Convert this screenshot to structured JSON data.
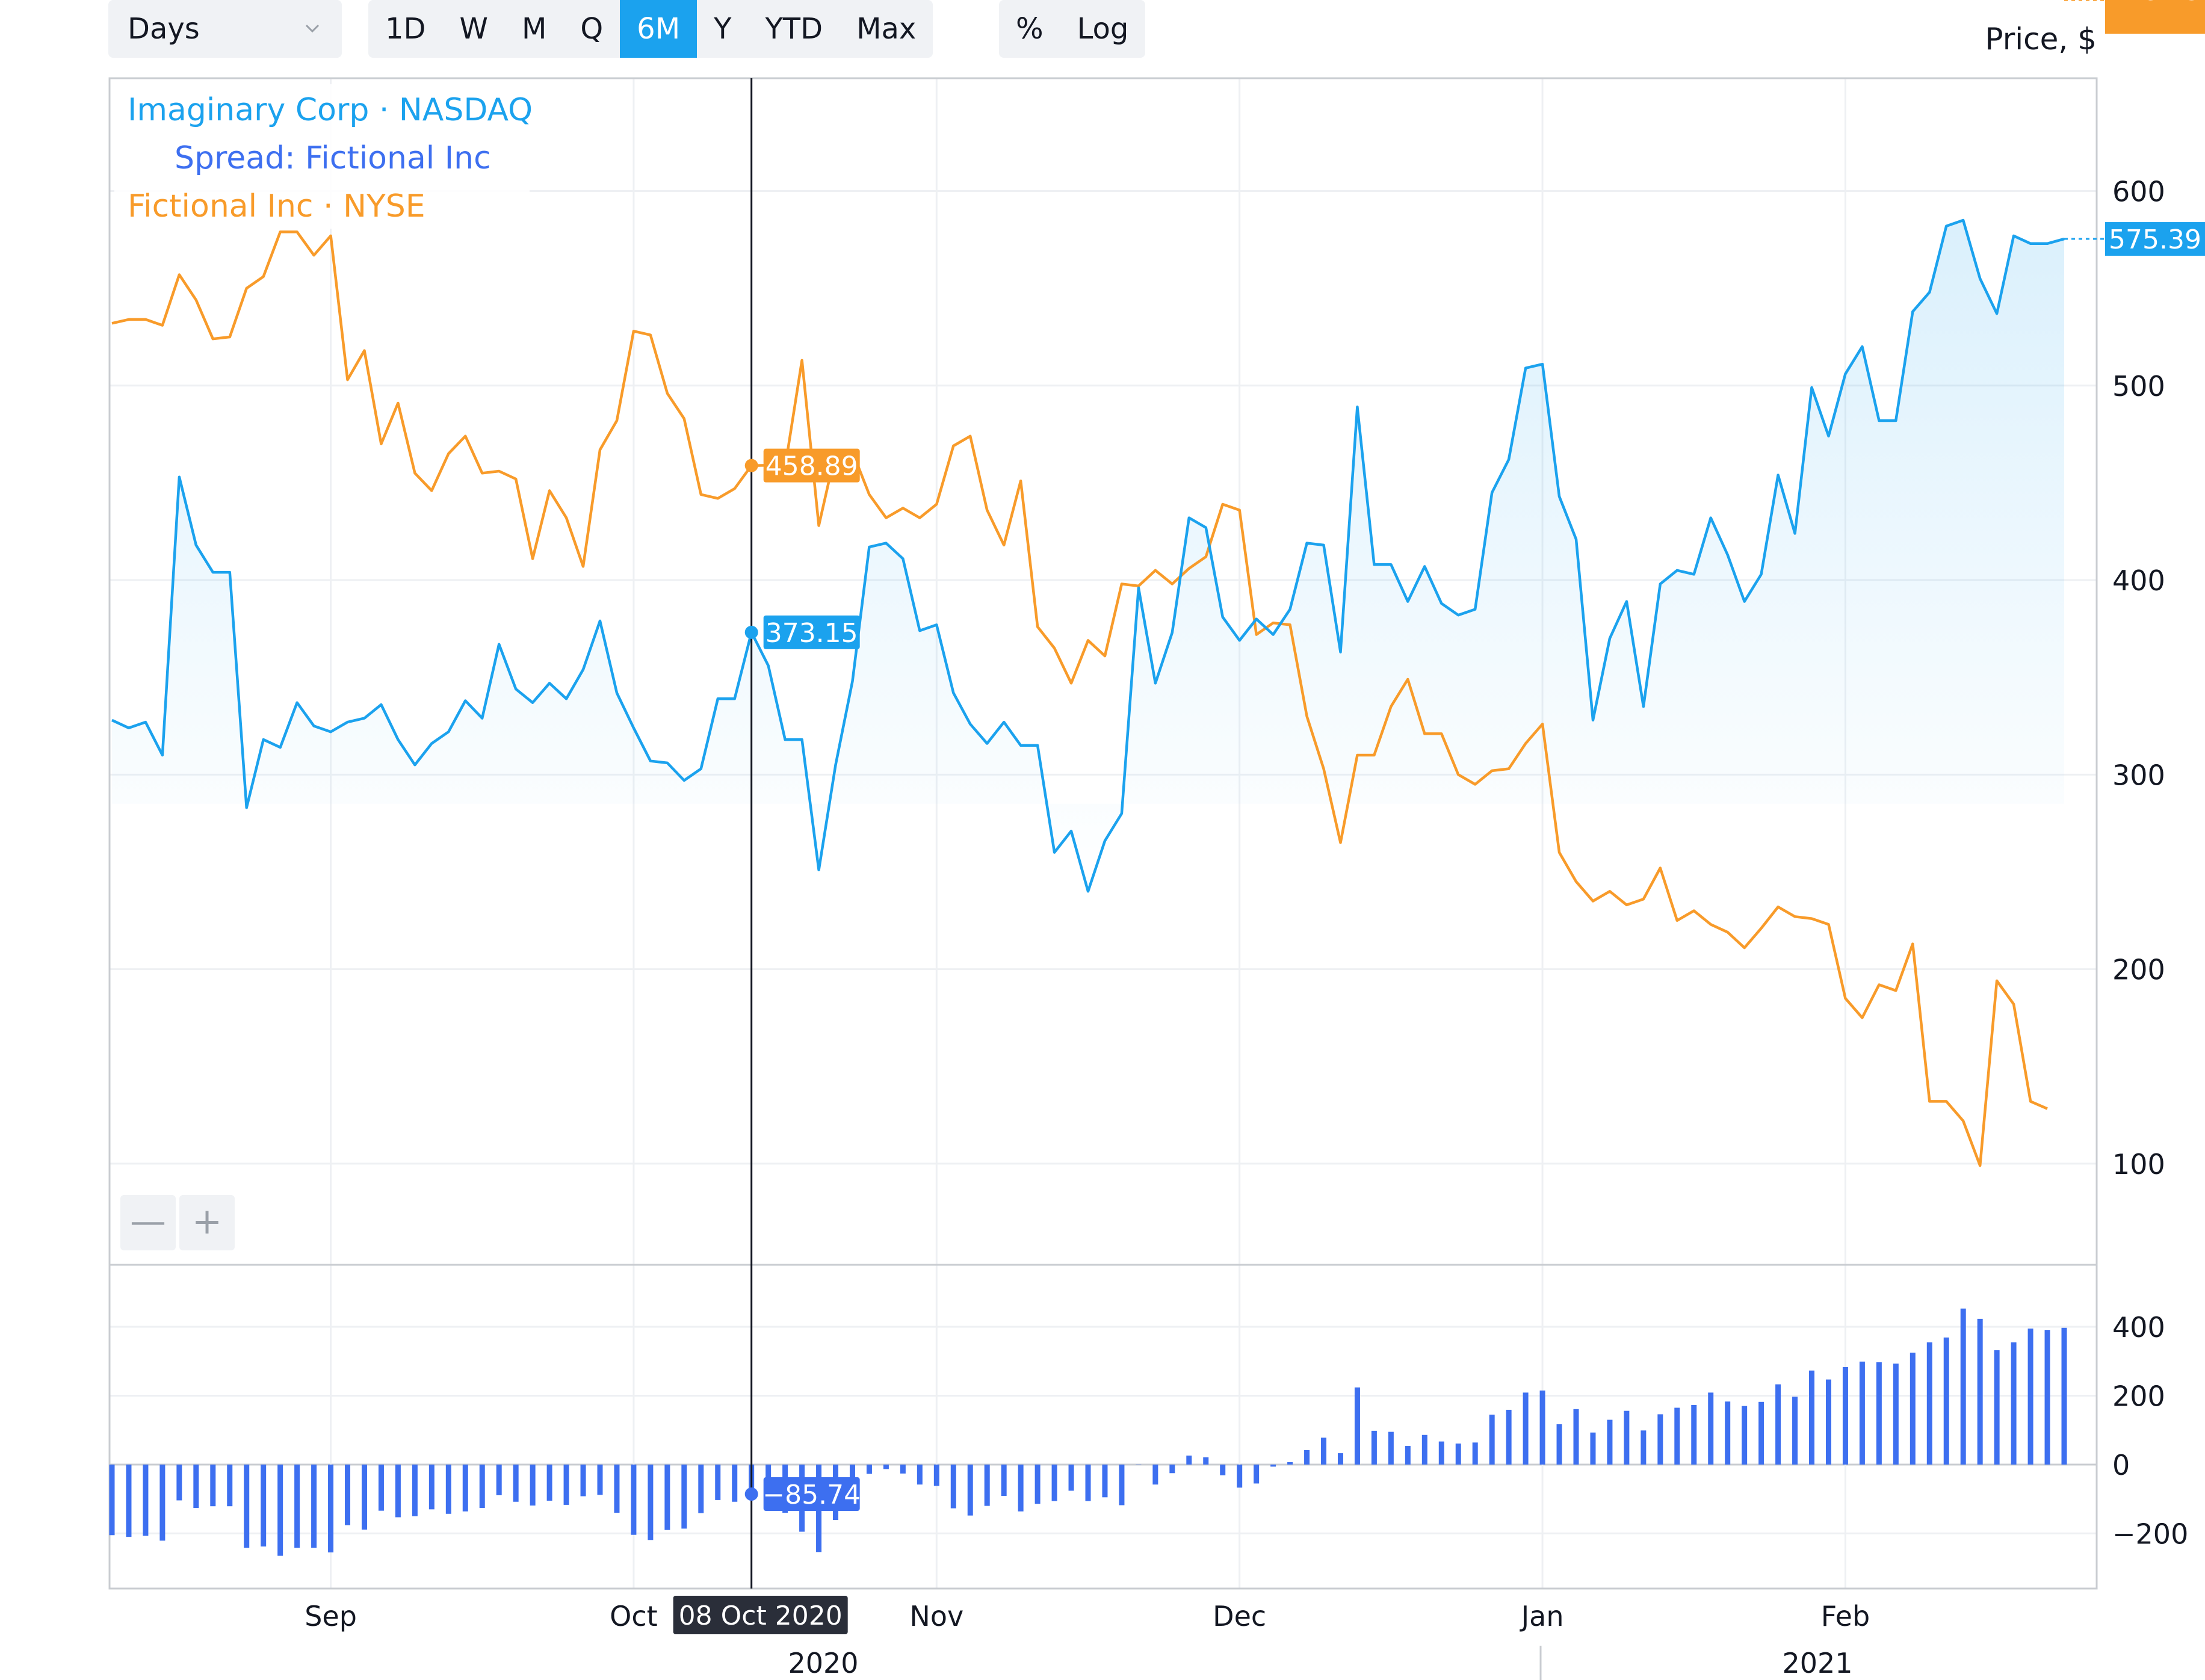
{
  "toolbar": {
    "interval_select": "Days",
    "ranges": [
      "1D",
      "W",
      "M",
      "Q",
      "6M",
      "Y",
      "YTD",
      "Max"
    ],
    "active_range": "6M",
    "scale_buttons": [
      "%",
      "Log"
    ]
  },
  "price_axis_label": "Price, $",
  "zoom": {
    "out": "—",
    "in": "+"
  },
  "chart_data": {
    "type": "line",
    "legend": [
      {
        "name": "Imaginary Corp · NASDAQ",
        "color": "#1ba2ee"
      },
      {
        "name": "Spread: Fictional Inc",
        "color": "#3d6ff0"
      },
      {
        "name": "Fictional Inc · NYSE",
        "color": "#f89b2a"
      }
    ],
    "x_labels": [
      "Sep",
      "Oct",
      "Nov",
      "Dec",
      "Jan",
      "Feb"
    ],
    "year_labels": [
      "2020",
      "2021"
    ],
    "crosshair": {
      "date": "08 Oct 2020",
      "imaginary": "373.15",
      "fictional": "458.89",
      "spread": "−85.74"
    },
    "last_values": {
      "imaginary": "575.39",
      "fictional": "128.25"
    },
    "price_axis": {
      "ticks": [
        100,
        200,
        300,
        400,
        500,
        600
      ],
      "ylim": [
        48,
        658
      ]
    },
    "spread_axis": {
      "ticks": [
        "−200",
        "0",
        "200",
        "400"
      ],
      "tick_values": [
        -200,
        0,
        200,
        400
      ],
      "ylim": [
        -360,
        580
      ]
    },
    "series": [
      {
        "name": "Imaginary Corp · NASDAQ",
        "color": "#1ba2ee",
        "values": [
          328,
          324,
          327,
          310,
          453,
          418,
          404,
          404,
          283,
          318,
          314,
          337,
          325,
          322,
          327,
          329,
          336,
          318,
          305,
          316,
          322,
          338,
          329,
          367,
          344,
          337,
          347,
          339,
          354,
          379,
          342,
          324,
          307,
          306,
          297,
          303,
          339,
          339,
          373.15,
          356,
          318,
          318,
          251,
          305,
          348,
          417,
          419,
          411,
          374,
          377,
          342,
          326,
          316,
          327,
          315,
          315,
          260,
          271,
          240,
          266,
          280,
          396,
          347,
          373,
          432,
          427,
          381,
          369,
          380,
          372,
          385,
          419,
          418,
          363,
          489,
          408,
          408,
          389,
          407,
          388,
          382,
          385,
          445,
          462,
          509,
          511,
          443,
          421,
          328,
          370,
          389,
          335,
          398,
          405,
          403,
          432,
          413,
          389,
          403,
          454,
          424,
          499,
          474,
          506,
          520,
          482,
          482,
          538,
          548,
          582,
          585,
          555,
          537,
          577,
          573,
          573,
          575.39
        ],
        "fill": true
      },
      {
        "name": "Fictional Inc · NYSE",
        "color": "#f89b2a",
        "values": [
          532,
          534,
          534,
          531,
          557,
          544,
          524,
          525,
          550,
          556,
          579,
          579,
          567,
          577,
          503,
          518,
          470,
          491,
          455,
          446,
          465,
          474,
          455,
          456,
          452,
          411,
          446,
          432,
          407,
          467,
          482,
          528,
          526,
          496,
          483,
          444,
          442,
          447,
          458.89,
          459,
          458,
          513,
          428,
          466,
          466,
          444,
          432,
          437,
          432,
          439,
          469,
          474,
          436,
          418,
          451,
          376,
          365,
          347,
          369,
          361,
          398,
          397,
          405,
          398,
          406,
          412,
          439,
          436,
          372,
          378,
          377,
          330,
          303,
          265,
          310,
          310,
          335,
          349,
          321,
          321,
          300,
          295,
          302,
          303,
          316,
          326,
          260,
          245,
          235,
          240,
          233,
          236,
          252,
          225,
          230,
          223,
          219,
          211,
          221,
          232,
          227,
          226,
          223,
          185,
          175,
          192,
          189,
          213,
          132,
          132,
          122,
          99,
          194,
          182,
          132,
          128.25
        ]
      },
      {
        "name": "Spread: Fictional Inc",
        "color": "#3d6ff0",
        "values": [
          -205,
          -210,
          -207,
          -221,
          -104,
          -126,
          -121,
          -121,
          -242,
          -238,
          -265,
          -242,
          -242,
          -255,
          -176,
          -189,
          -134,
          -153,
          -150,
          -130,
          -143,
          -136,
          -126,
          -89,
          -108,
          -119,
          -105,
          -117,
          -92,
          -88,
          -140,
          -204,
          -219,
          -190,
          -186,
          -141,
          -103,
          -108,
          -85.74,
          -103,
          -140,
          -195,
          -254,
          -161,
          -118,
          -27,
          -13,
          -26,
          -58,
          -62,
          -127,
          -148,
          -120,
          -91,
          -136,
          -114,
          -106,
          -76,
          -106,
          -95,
          -118,
          -1,
          -58,
          -25,
          26,
          21,
          -31,
          -67,
          -55,
          -6,
          7,
          42,
          78,
          33,
          224,
          98,
          95,
          54,
          86,
          67,
          61,
          64,
          145,
          159,
          209,
          215,
          117,
          161,
          93,
          130,
          156,
          99,
          146,
          165,
          173,
          209,
          183,
          170,
          182,
          233,
          197,
          273,
          247,
          283,
          299,
          297,
          293,
          325,
          355,
          369,
          453,
          423,
          332,
          355,
          395,
          391,
          397
        ]
      }
    ]
  }
}
